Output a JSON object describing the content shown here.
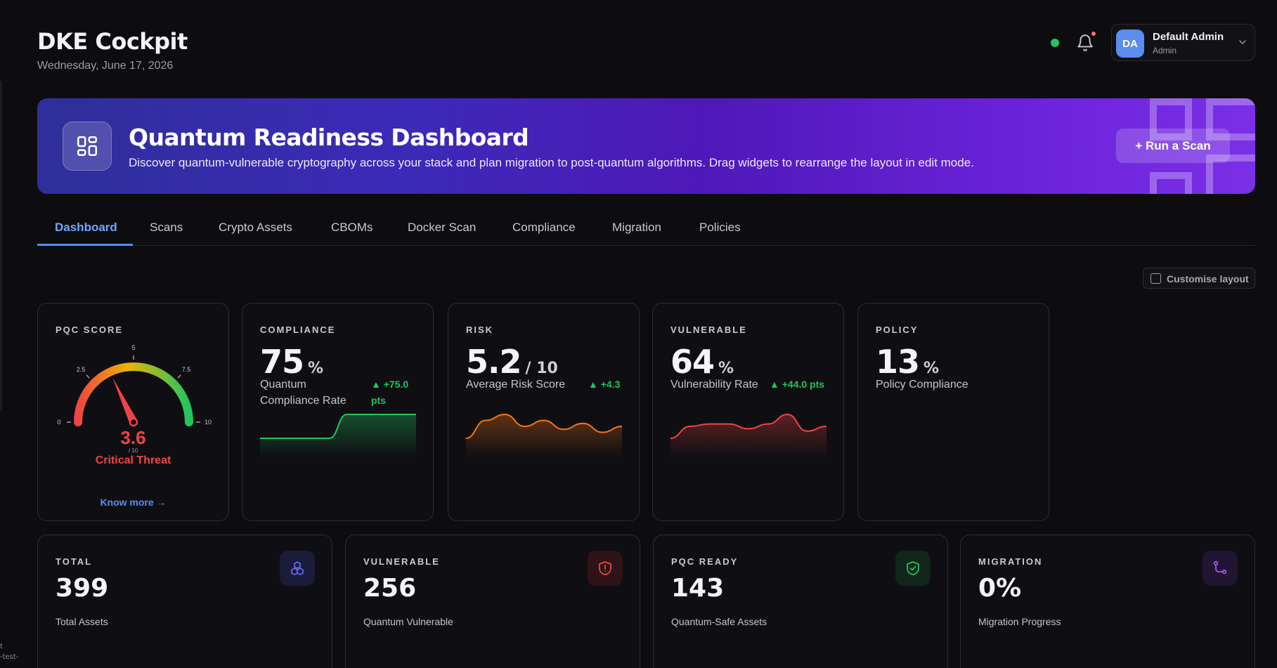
{
  "app": {
    "title": "DKE Cockpit",
    "date": "Wednesday, June 17, 2026"
  },
  "user": {
    "initials": "DA",
    "name": "Default Admin",
    "role": "Admin"
  },
  "edge_text": [
    "t",
    "-test-"
  ],
  "banner": {
    "title": "Quantum Readiness Dashboard",
    "subtitle": "Discover quantum-vulnerable cryptography across your stack and plan migration to post-quantum algorithms. Drag widgets to rearrange the layout in edit mode.",
    "button": "+ Run a Scan"
  },
  "tabs": [
    "Dashboard",
    "Scans",
    "Crypto Assets",
    "CBOMs",
    "Docker Scan",
    "Compliance",
    "Migration",
    "Policies"
  ],
  "active_tab": "Dashboard",
  "customise_label": "Customise layout",
  "pqc_score": {
    "label": "PQC SCORE",
    "value": "3.6",
    "score": 3.6,
    "max": 10,
    "denominator": "/ 10",
    "status": "Critical Threat",
    "ticks": [
      "0",
      "2.5",
      "5",
      "7.5",
      "10"
    ],
    "link": "Know more →"
  },
  "metrics": {
    "compliance": {
      "label": "COMPLIANCE",
      "value": "75",
      "unit": "%",
      "desc_line1": "Quantum",
      "desc_line2": "Compliance Rate",
      "delta_line1": "▲ +75.0",
      "delta_line2": "pts",
      "spark_color": "#22c55e",
      "trend": [
        0,
        0,
        0,
        0,
        0,
        1,
        1,
        1,
        1,
        1
      ]
    },
    "risk": {
      "label": "RISK",
      "value": "5.2",
      "unit": "/ 10",
      "desc": "Average Risk Score",
      "delta": "▲ +4.3",
      "spark_color": "#f97316",
      "trend": [
        2,
        8,
        10,
        6,
        8,
        5,
        7,
        4,
        6
      ]
    },
    "vulnerable": {
      "label": "VULNERABLE",
      "value": "64",
      "unit": "%",
      "desc": "Vulnerability Rate",
      "delta": "▲ +44.0 pts",
      "spark_color": "#ef4444",
      "trend": [
        1,
        6,
        7,
        7,
        5,
        7,
        11,
        4,
        6
      ]
    },
    "policy": {
      "label": "POLICY",
      "value": "13",
      "unit": "%",
      "desc": "Policy Compliance"
    }
  },
  "stats": [
    {
      "label": "TOTAL",
      "value": "399",
      "desc": "Total Assets",
      "icon": "cubes-icon",
      "icon_color": "#6366f1"
    },
    {
      "label": "VULNERABLE",
      "value": "256",
      "desc": "Quantum Vulnerable",
      "icon": "shield-alert-icon",
      "icon_color": "#ef4444"
    },
    {
      "label": "PQC READY",
      "value": "143",
      "desc": "Quantum-Safe Assets",
      "icon": "shield-check-icon",
      "icon_color": "#22c55e"
    },
    {
      "label": "MIGRATION",
      "value": "0%",
      "desc": "Migration Progress",
      "icon": "git-branch-icon",
      "icon_color": "#a855f7"
    }
  ],
  "colors": {
    "accent": "#4f8ff7",
    "success": "#22c55e",
    "danger": "#ef4444",
    "warning": "#f97316"
  }
}
